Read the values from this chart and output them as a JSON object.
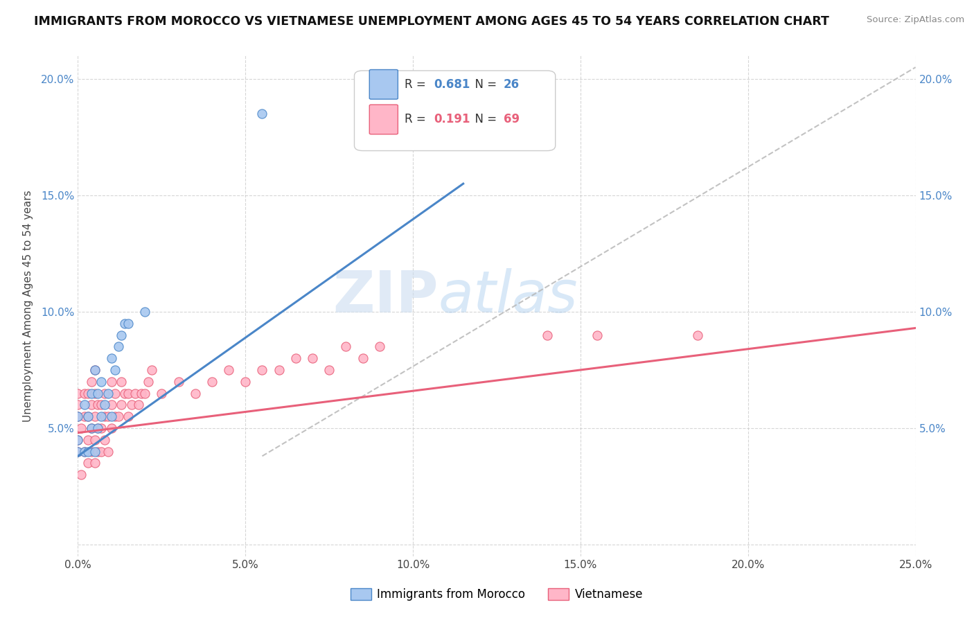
{
  "title": "IMMIGRANTS FROM MOROCCO VS VIETNAMESE UNEMPLOYMENT AMONG AGES 45 TO 54 YEARS CORRELATION CHART",
  "source": "Source: ZipAtlas.com",
  "ylabel": "Unemployment Among Ages 45 to 54 years",
  "xlim": [
    0.0,
    0.25
  ],
  "ylim": [
    -0.005,
    0.21
  ],
  "xticks": [
    0.0,
    0.05,
    0.1,
    0.15,
    0.2,
    0.25
  ],
  "xticklabels": [
    "0.0%",
    "5.0%",
    "10.0%",
    "15.0%",
    "20.0%",
    "25.0%"
  ],
  "yticks": [
    0.0,
    0.05,
    0.1,
    0.15,
    0.2
  ],
  "yticklabels": [
    "",
    "5.0%",
    "10.0%",
    "15.0%",
    "20.0%"
  ],
  "morocco_color": "#a8c8f0",
  "vietnamese_color": "#ffb6c8",
  "morocco_line_color": "#4a86c8",
  "vietnamese_line_color": "#e8607a",
  "legend_morocco_R": "0.681",
  "legend_morocco_N": "26",
  "legend_vietnamese_R": "0.191",
  "legend_vietnamese_N": "69",
  "watermark_zip": "ZIP",
  "watermark_atlas": "atlas",
  "morocco_scatter_x": [
    0.0,
    0.0,
    0.0,
    0.002,
    0.002,
    0.003,
    0.003,
    0.004,
    0.004,
    0.005,
    0.005,
    0.006,
    0.006,
    0.007,
    0.007,
    0.008,
    0.009,
    0.01,
    0.01,
    0.011,
    0.012,
    0.013,
    0.014,
    0.015,
    0.02,
    0.055
  ],
  "morocco_scatter_y": [
    0.04,
    0.045,
    0.055,
    0.04,
    0.06,
    0.04,
    0.055,
    0.05,
    0.065,
    0.04,
    0.075,
    0.05,
    0.065,
    0.055,
    0.07,
    0.06,
    0.065,
    0.055,
    0.08,
    0.075,
    0.085,
    0.09,
    0.095,
    0.095,
    0.1,
    0.185
  ],
  "vietnamese_scatter_x": [
    0.0,
    0.0,
    0.0,
    0.0,
    0.0,
    0.001,
    0.001,
    0.002,
    0.002,
    0.002,
    0.003,
    0.003,
    0.003,
    0.003,
    0.004,
    0.004,
    0.004,
    0.004,
    0.005,
    0.005,
    0.005,
    0.005,
    0.005,
    0.006,
    0.006,
    0.006,
    0.007,
    0.007,
    0.007,
    0.008,
    0.008,
    0.008,
    0.009,
    0.009,
    0.01,
    0.01,
    0.01,
    0.011,
    0.011,
    0.012,
    0.013,
    0.013,
    0.014,
    0.015,
    0.015,
    0.016,
    0.017,
    0.018,
    0.019,
    0.02,
    0.021,
    0.022,
    0.025,
    0.03,
    0.035,
    0.04,
    0.045,
    0.05,
    0.055,
    0.06,
    0.065,
    0.07,
    0.075,
    0.08,
    0.085,
    0.09,
    0.14,
    0.155,
    0.185
  ],
  "vietnamese_scatter_y": [
    0.04,
    0.045,
    0.055,
    0.06,
    0.065,
    0.03,
    0.05,
    0.04,
    0.055,
    0.065,
    0.035,
    0.045,
    0.055,
    0.065,
    0.04,
    0.05,
    0.06,
    0.07,
    0.035,
    0.045,
    0.055,
    0.065,
    0.075,
    0.04,
    0.05,
    0.06,
    0.04,
    0.05,
    0.06,
    0.045,
    0.055,
    0.065,
    0.04,
    0.055,
    0.05,
    0.06,
    0.07,
    0.055,
    0.065,
    0.055,
    0.06,
    0.07,
    0.065,
    0.055,
    0.065,
    0.06,
    0.065,
    0.06,
    0.065,
    0.065,
    0.07,
    0.075,
    0.065,
    0.07,
    0.065,
    0.07,
    0.075,
    0.07,
    0.075,
    0.075,
    0.08,
    0.08,
    0.075,
    0.085,
    0.08,
    0.085,
    0.09,
    0.09,
    0.09
  ],
  "morocco_line_start_x": 0.0,
  "morocco_line_start_y": 0.038,
  "morocco_line_end_x": 0.115,
  "morocco_line_end_y": 0.155,
  "viet_line_start_x": 0.0,
  "viet_line_start_y": 0.048,
  "viet_line_end_x": 0.25,
  "viet_line_end_y": 0.093,
  "dash_line_start_x": 0.055,
  "dash_line_start_y": 0.038,
  "dash_line_end_x": 0.25,
  "dash_line_end_y": 0.205
}
